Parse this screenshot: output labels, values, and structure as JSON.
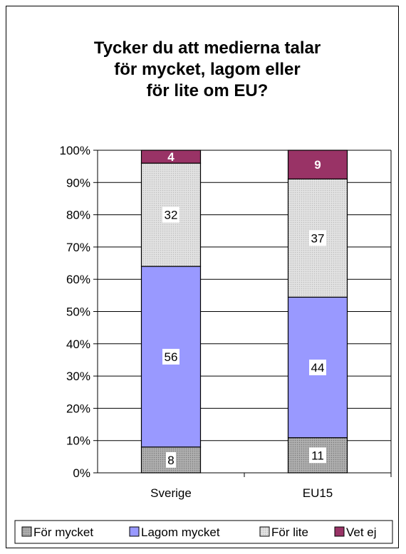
{
  "chart_data": {
    "type": "bar",
    "stacked": true,
    "percent_stacked": true,
    "title": [
      "Tycker du att medierna talar",
      "för mycket, lagom eller",
      "för lite om EU?"
    ],
    "categories": [
      "Sverige",
      "EU15"
    ],
    "series": [
      {
        "name": "För mycket",
        "values": [
          8,
          11
        ],
        "color": "#a6a6a6",
        "pattern": "dots",
        "label_style": "plain"
      },
      {
        "name": "Lagom mycket",
        "values": [
          56,
          44
        ],
        "color": "#9999ff",
        "pattern": "none",
        "label_style": "plain"
      },
      {
        "name": "För lite",
        "values": [
          32,
          37
        ],
        "color": "#d9d9d9",
        "pattern": "dots",
        "label_style": "plain"
      },
      {
        "name": "Vet ej",
        "values": [
          4,
          9
        ],
        "color": "#993366",
        "pattern": "none",
        "label_style": "bold-white"
      }
    ],
    "ylim": [
      0,
      100
    ],
    "yticks": [
      "0%",
      "10%",
      "20%",
      "30%",
      "40%",
      "50%",
      "60%",
      "70%",
      "80%",
      "90%",
      "100%"
    ],
    "xlabel": "",
    "ylabel": "",
    "grid": true,
    "legend_position": "bottom"
  }
}
